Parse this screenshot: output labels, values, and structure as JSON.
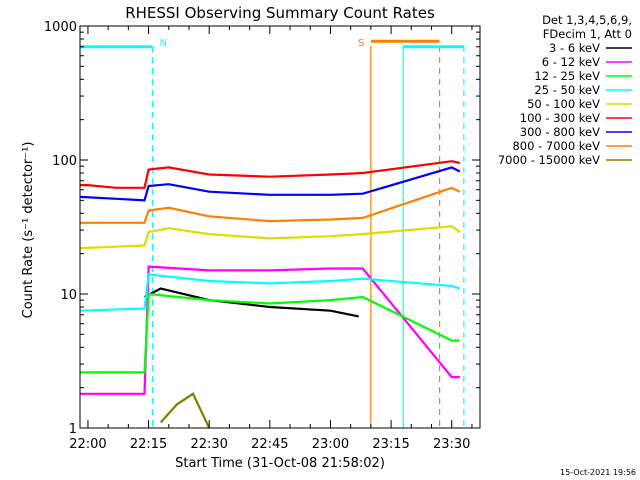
{
  "chart_data": {
    "type": "line",
    "title": "RHESSI Observing Summary Count Rates",
    "xlabel": "Start Time (31-Oct-08 21:58:02)",
    "ylabel": "Count Rate (s⁻¹ detector⁻¹)",
    "y_scale": "log",
    "ylim": [
      1,
      1000
    ],
    "y_ticks": [
      {
        "value": 1,
        "label": "1"
      },
      {
        "value": 10,
        "label": "10"
      },
      {
        "value": 100,
        "label": "100"
      },
      {
        "value": 1000,
        "label": "1000"
      }
    ],
    "xlim": [
      "21:58:02",
      "23:37:00"
    ],
    "x_ticks": [
      "22:00",
      "22:15",
      "22:30",
      "22:45",
      "23:00",
      "23:15",
      "23:30"
    ],
    "legend_header": [
      "Det 1,3,4,5,6,9,",
      "FDecim 1, Att 0"
    ],
    "legend_position": "right",
    "footer_date": "15-Oct-2021 19:56",
    "series": [
      {
        "name": "3 - 6 keV",
        "color": "#000000",
        "points": [
          [
            "22:14",
            9.5
          ],
          [
            "22:18",
            11
          ],
          [
            "22:30",
            9
          ],
          [
            "22:45",
            8
          ],
          [
            "23:00",
            7.5
          ],
          [
            "23:07",
            6.8
          ]
        ]
      },
      {
        "name": "6 - 12 keV",
        "color": "#ff00ff",
        "points": [
          [
            "21:58",
            1.8
          ],
          [
            "22:14",
            1.8
          ],
          [
            "22:15",
            16
          ],
          [
            "22:30",
            15
          ],
          [
            "22:45",
            15
          ],
          [
            "23:00",
            15.5
          ],
          [
            "23:08",
            15.5
          ],
          [
            "23:30",
            2.4
          ],
          [
            "23:32",
            2.4
          ]
        ]
      },
      {
        "name": "12 - 25 keV",
        "color": "#00ff00",
        "points": [
          [
            "21:58",
            2.6
          ],
          [
            "22:14",
            2.6
          ],
          [
            "22:15",
            10
          ],
          [
            "22:30",
            9
          ],
          [
            "22:45",
            8.5
          ],
          [
            "23:00",
            9
          ],
          [
            "23:08",
            9.5
          ],
          [
            "23:30",
            4.5
          ],
          [
            "23:32",
            4.5
          ]
        ]
      },
      {
        "name": "25 - 50 keV",
        "color": "#00ffff",
        "points": [
          [
            "21:58",
            7.5
          ],
          [
            "22:14",
            7.8
          ],
          [
            "22:15",
            14
          ],
          [
            "22:30",
            12.5
          ],
          [
            "22:45",
            12
          ],
          [
            "23:00",
            12.5
          ],
          [
            "23:08",
            13
          ],
          [
            "23:30",
            11.5
          ],
          [
            "23:32",
            11
          ]
        ]
      },
      {
        "name": "50 - 100 keV",
        "color": "#dddd00",
        "points": [
          [
            "21:58",
            22
          ],
          [
            "22:14",
            23
          ],
          [
            "22:15",
            29
          ],
          [
            "22:20",
            31
          ],
          [
            "22:30",
            28
          ],
          [
            "22:45",
            26
          ],
          [
            "23:00",
            27
          ],
          [
            "23:08",
            28
          ],
          [
            "23:30",
            32
          ],
          [
            "23:32",
            29
          ]
        ]
      },
      {
        "name": "100 - 300 keV",
        "color": "#ff0000",
        "points": [
          [
            "21:58",
            65
          ],
          [
            "22:00",
            65
          ],
          [
            "22:07",
            62
          ],
          [
            "22:14",
            62
          ],
          [
            "22:15",
            85
          ],
          [
            "22:20",
            88
          ],
          [
            "22:30",
            78
          ],
          [
            "22:45",
            75
          ],
          [
            "23:00",
            78
          ],
          [
            "23:08",
            80
          ],
          [
            "23:30",
            98
          ],
          [
            "23:32",
            95
          ]
        ]
      },
      {
        "name": "300 - 800 keV",
        "color": "#0000ff",
        "points": [
          [
            "21:58",
            53
          ],
          [
            "22:14",
            50
          ],
          [
            "22:15",
            64
          ],
          [
            "22:20",
            66
          ],
          [
            "22:30",
            58
          ],
          [
            "22:45",
            55
          ],
          [
            "23:00",
            55
          ],
          [
            "23:08",
            56
          ],
          [
            "23:30",
            88
          ],
          [
            "23:32",
            82
          ]
        ]
      },
      {
        "name": "800 - 7000 keV",
        "color": "#ff8000",
        "points": [
          [
            "21:58",
            34
          ],
          [
            "22:14",
            34
          ],
          [
            "22:15",
            42
          ],
          [
            "22:20",
            44
          ],
          [
            "22:30",
            38
          ],
          [
            "22:45",
            35
          ],
          [
            "23:00",
            36
          ],
          [
            "23:08",
            37
          ],
          [
            "23:30",
            62
          ],
          [
            "23:32",
            58
          ]
        ]
      },
      {
        "name": "7000 - 15000 keV",
        "color": "#808000",
        "points": [
          [
            "22:18",
            1.1
          ],
          [
            "22:22",
            1.5
          ],
          [
            "22:26",
            1.8
          ],
          [
            "22:30",
            1.0
          ]
        ]
      }
    ],
    "annotations": [
      {
        "label": "N",
        "at": "22:16",
        "color": "#00ffff"
      },
      {
        "label": "S",
        "at": "23:09",
        "color": "#ff8000"
      }
    ],
    "state_lines": [
      {
        "color": "#00ffff",
        "y": 700,
        "from": "21:58",
        "to": "22:16"
      },
      {
        "color": "#ff8000",
        "y": 770,
        "from": "23:10",
        "to": "23:27"
      },
      {
        "color": "#00ffff",
        "y": 700,
        "from": "23:18",
        "to": "23:33"
      }
    ],
    "vertical_lines": [
      {
        "color": "#00ffff",
        "at": "22:16",
        "style": "dashed"
      },
      {
        "color": "#ff8000",
        "at": "23:10",
        "style": "solid"
      },
      {
        "color": "#00ffff",
        "at": "23:18",
        "style": "solid"
      },
      {
        "color": "#ff8000",
        "at": "23:27",
        "style": "dashed"
      },
      {
        "color": "#00ffff",
        "at": "23:33",
        "style": "dashed"
      }
    ]
  }
}
